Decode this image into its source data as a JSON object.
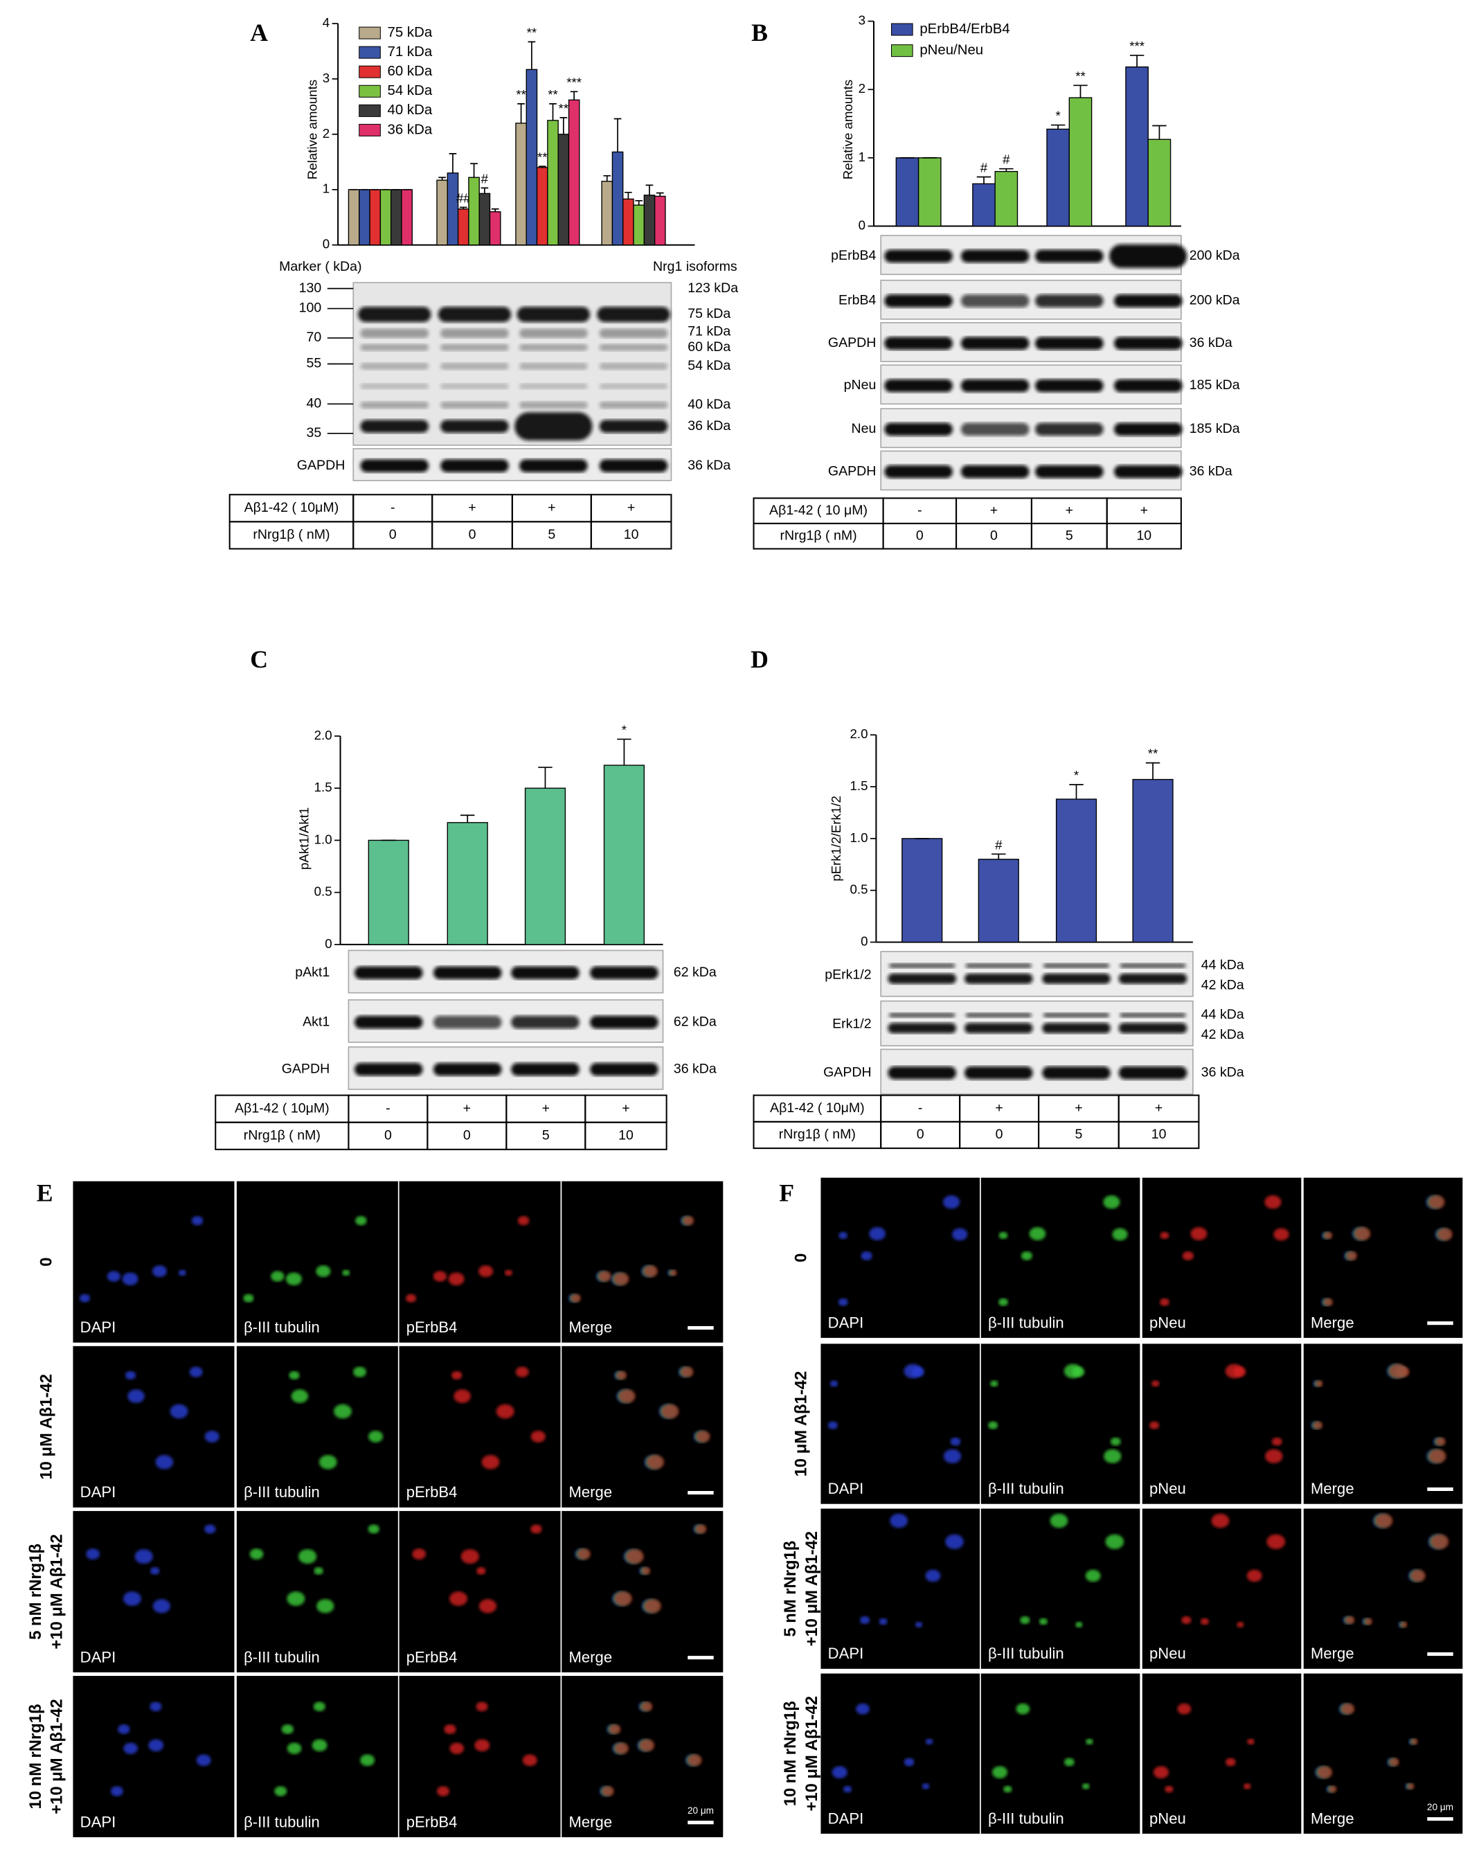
{
  "figure": {
    "panel_labels": [
      "A",
      "B",
      "C",
      "D",
      "E",
      "F"
    ]
  },
  "chart_data": [
    {
      "type": "bar",
      "ylabel": "Relative amounts",
      "categories": [
        null,
        null,
        null,
        null
      ],
      "ylim": [
        0,
        4
      ],
      "yticks": [
        0,
        1,
        2,
        3,
        4
      ],
      "legend": "upper-left",
      "series": [
        {
          "name": "75 kDa",
          "color": "#b9aa8b",
          "values": [
            1,
            1.17,
            2.2,
            1.15
          ],
          "errors": [
            0,
            0.05,
            0.35,
            0.1
          ],
          "annotations": [
            null,
            null,
            "**",
            null
          ]
        },
        {
          "name": "71 kDa",
          "color": "#3a55a5",
          "values": [
            1,
            1.3,
            3.17,
            1.68
          ],
          "errors": [
            0,
            0.35,
            0.5,
            0.6
          ],
          "annotations": [
            null,
            null,
            "**",
            null
          ]
        },
        {
          "name": "60 kDa",
          "color": "#e03030",
          "values": [
            1,
            0.65,
            1.4,
            0.83
          ],
          "errors": [
            0,
            0.03,
            0.02,
            0.12
          ],
          "annotations": [
            null,
            "##",
            "**",
            null
          ]
        },
        {
          "name": "54 kDa",
          "color": "#7cc242",
          "values": [
            1,
            1.22,
            2.25,
            0.72
          ],
          "errors": [
            0,
            0.25,
            0.3,
            0.08
          ],
          "annotations": [
            null,
            null,
            "**",
            null
          ]
        },
        {
          "name": "40 kDa",
          "color": "#3a3a3a",
          "values": [
            1,
            0.93,
            2.0,
            0.9
          ],
          "errors": [
            0,
            0.1,
            0.3,
            0.18
          ],
          "annotations": [
            null,
            "#",
            "**",
            null
          ]
        },
        {
          "name": "36 kDa",
          "color": "#e0306a",
          "values": [
            1,
            0.6,
            2.62,
            0.88
          ],
          "errors": [
            0,
            0.05,
            0.15,
            0.06
          ],
          "annotations": [
            null,
            null,
            "***",
            null
          ]
        }
      ]
    },
    {
      "type": "bar",
      "ylabel": "Relative amounts",
      "categories": [
        null,
        null,
        null,
        null
      ],
      "ylim": [
        0,
        3
      ],
      "yticks": [
        0,
        1,
        2,
        3
      ],
      "legend": "upper-left",
      "series": [
        {
          "name": "pErbB4/ErbB4",
          "color": "#3a4fa6",
          "values": [
            1,
            0.62,
            1.42,
            2.33
          ],
          "errors": [
            0,
            0.1,
            0.06,
            0.17
          ],
          "annotations": [
            null,
            "#",
            "*",
            "***"
          ]
        },
        {
          "name": "pNeu/Neu",
          "color": "#72c043",
          "values": [
            1,
            0.8,
            1.88,
            1.27
          ],
          "errors": [
            0,
            0.04,
            0.18,
            0.2
          ],
          "annotations": [
            null,
            "#",
            "**",
            null
          ]
        }
      ]
    },
    {
      "type": "bar",
      "ylabel": "pAkt1/Akt1",
      "categories": [
        null,
        null,
        null,
        null
      ],
      "color": "#5cbf8e",
      "values": [
        1,
        1.17,
        1.5,
        1.72
      ],
      "errors": [
        0,
        0.07,
        0.2,
        0.25
      ],
      "annotations": [
        null,
        null,
        null,
        "*"
      ],
      "ylim": [
        0,
        2
      ],
      "yticks": [
        0,
        0.5,
        {
          "value": 1,
          "label": "1.0"
        },
        1.5,
        {
          "value": 2,
          "label": "2.0"
        }
      ]
    },
    {
      "type": "bar",
      "ylabel": "pErk1/2/Erk1/2",
      "categories": [
        null,
        null,
        null,
        null
      ],
      "color": "#3f51a8",
      "values": [
        1,
        0.8,
        1.38,
        1.57
      ],
      "errors": [
        0,
        0.05,
        0.14,
        0.16
      ],
      "annotations": [
        null,
        "#",
        "*",
        "**"
      ],
      "ylim": [
        0,
        2
      ],
      "yticks": [
        0,
        0.5,
        {
          "value": 1,
          "label": "1.0"
        },
        1.5,
        {
          "value": 2,
          "label": "2.0"
        }
      ]
    }
  ],
  "blots": [
    {
      "marker_title": "Marker ( kDa)",
      "isoform_title": "Nrg1 isoforms",
      "markers": [
        "130",
        "100",
        "70",
        "55",
        "40",
        "35"
      ],
      "isoforms": [
        "123 kDa",
        "75 kDa",
        "71 kDa",
        "60 kDa",
        "54 kDa",
        "40 kDa",
        "36 kDa"
      ],
      "rows": [
        {
          "label": "GAPDH",
          "sizes": [
            "36 kDa"
          ]
        }
      ],
      "treatment": [
        [
          "Aβ1-42 ( 10μM)",
          "-",
          "+",
          "+",
          "+"
        ],
        [
          "rNrg1β ( nM)",
          "0",
          "0",
          "5",
          "10"
        ]
      ]
    },
    {
      "rows": [
        {
          "label": "pErbB4",
          "sizes": [
            "200 kDa"
          ]
        },
        {
          "label": "ErbB4",
          "sizes": [
            "200 kDa"
          ]
        },
        {
          "label": "GAPDH",
          "sizes": [
            "36 kDa"
          ]
        },
        {
          "label": "pNeu",
          "sizes": [
            "185 kDa"
          ]
        },
        {
          "label": "Neu",
          "sizes": [
            "185 kDa"
          ]
        },
        {
          "label": "GAPDH",
          "sizes": [
            "36 kDa"
          ]
        }
      ],
      "treatment": [
        [
          "Aβ1-42 ( 10 μM)",
          "-",
          "+",
          "+",
          "+"
        ],
        [
          "rNrg1β ( nM)",
          "0",
          "0",
          "5",
          "10"
        ]
      ]
    },
    {
      "rows": [
        {
          "label": "pAkt1",
          "sizes": [
            "62 kDa"
          ]
        },
        {
          "label": "Akt1",
          "sizes": [
            "62 kDa"
          ]
        },
        {
          "label": "GAPDH",
          "sizes": [
            "36 kDa"
          ]
        }
      ],
      "treatment": [
        [
          "Aβ1-42 ( 10μM)",
          "-",
          "+",
          "+",
          "+"
        ],
        [
          "rNrg1β ( nM)",
          "0",
          "0",
          "5",
          "10"
        ]
      ]
    },
    {
      "rows": [
        {
          "label": "pErk1/2",
          "sizes": [
            "44 kDa",
            "42 kDa"
          ]
        },
        {
          "label": "Erk1/2",
          "sizes": [
            "44 kDa",
            "42 kDa"
          ]
        },
        {
          "label": "GAPDH",
          "sizes": [
            "36 kDa"
          ]
        }
      ],
      "treatment": [
        [
          "Aβ1-42 ( 10μM)",
          "-",
          "+",
          "+",
          "+"
        ],
        [
          "rNrg1β ( nM)",
          "0",
          "0",
          "5",
          "10"
        ]
      ]
    }
  ],
  "micrographs": [
    {
      "scale_bar": "20 μm",
      "rows": [
        {
          "label": [
            "0"
          ],
          "cells": [
            "DAPI",
            "β-III tubulin",
            "pErbB4",
            "Merge"
          ]
        },
        {
          "label": [
            "10 μM Aβ1-42"
          ],
          "cells": [
            "DAPI",
            "β-III tubulin",
            "pErbB4",
            "Merge"
          ]
        },
        {
          "label": [
            "5 nM rNrg1β",
            "+10 μM Aβ1-42"
          ],
          "cells": [
            "DAPI",
            "β-III tubulin",
            "pErbB4",
            "Merge"
          ]
        },
        {
          "label": [
            "10 nM rNrg1β",
            "+10 μM Aβ1-42"
          ],
          "cells": [
            "DAPI",
            "β-III tubulin",
            "pErbB4",
            "Merge"
          ]
        }
      ]
    },
    {
      "scale_bar": "20 μm",
      "rows": [
        {
          "label": [
            "0"
          ],
          "cells": [
            "DAPI",
            "β-III tubulin",
            "pNeu",
            "Merge"
          ]
        },
        {
          "label": [
            "10 μM Aβ1-42"
          ],
          "cells": [
            "DAPI",
            "β-III tubulin",
            "pNeu",
            "Merge"
          ]
        },
        {
          "label": [
            "5 nM rNrg1β",
            "+10 μM Aβ1-42"
          ],
          "cells": [
            "DAPI",
            "β-III tubulin",
            "pNeu",
            "Merge"
          ]
        },
        {
          "label": [
            "10 nM rNrg1β",
            "+10 μM Aβ1-42"
          ],
          "cells": [
            "DAPI",
            "β-III tubulin",
            "pNeu",
            "Merge"
          ]
        }
      ]
    }
  ]
}
